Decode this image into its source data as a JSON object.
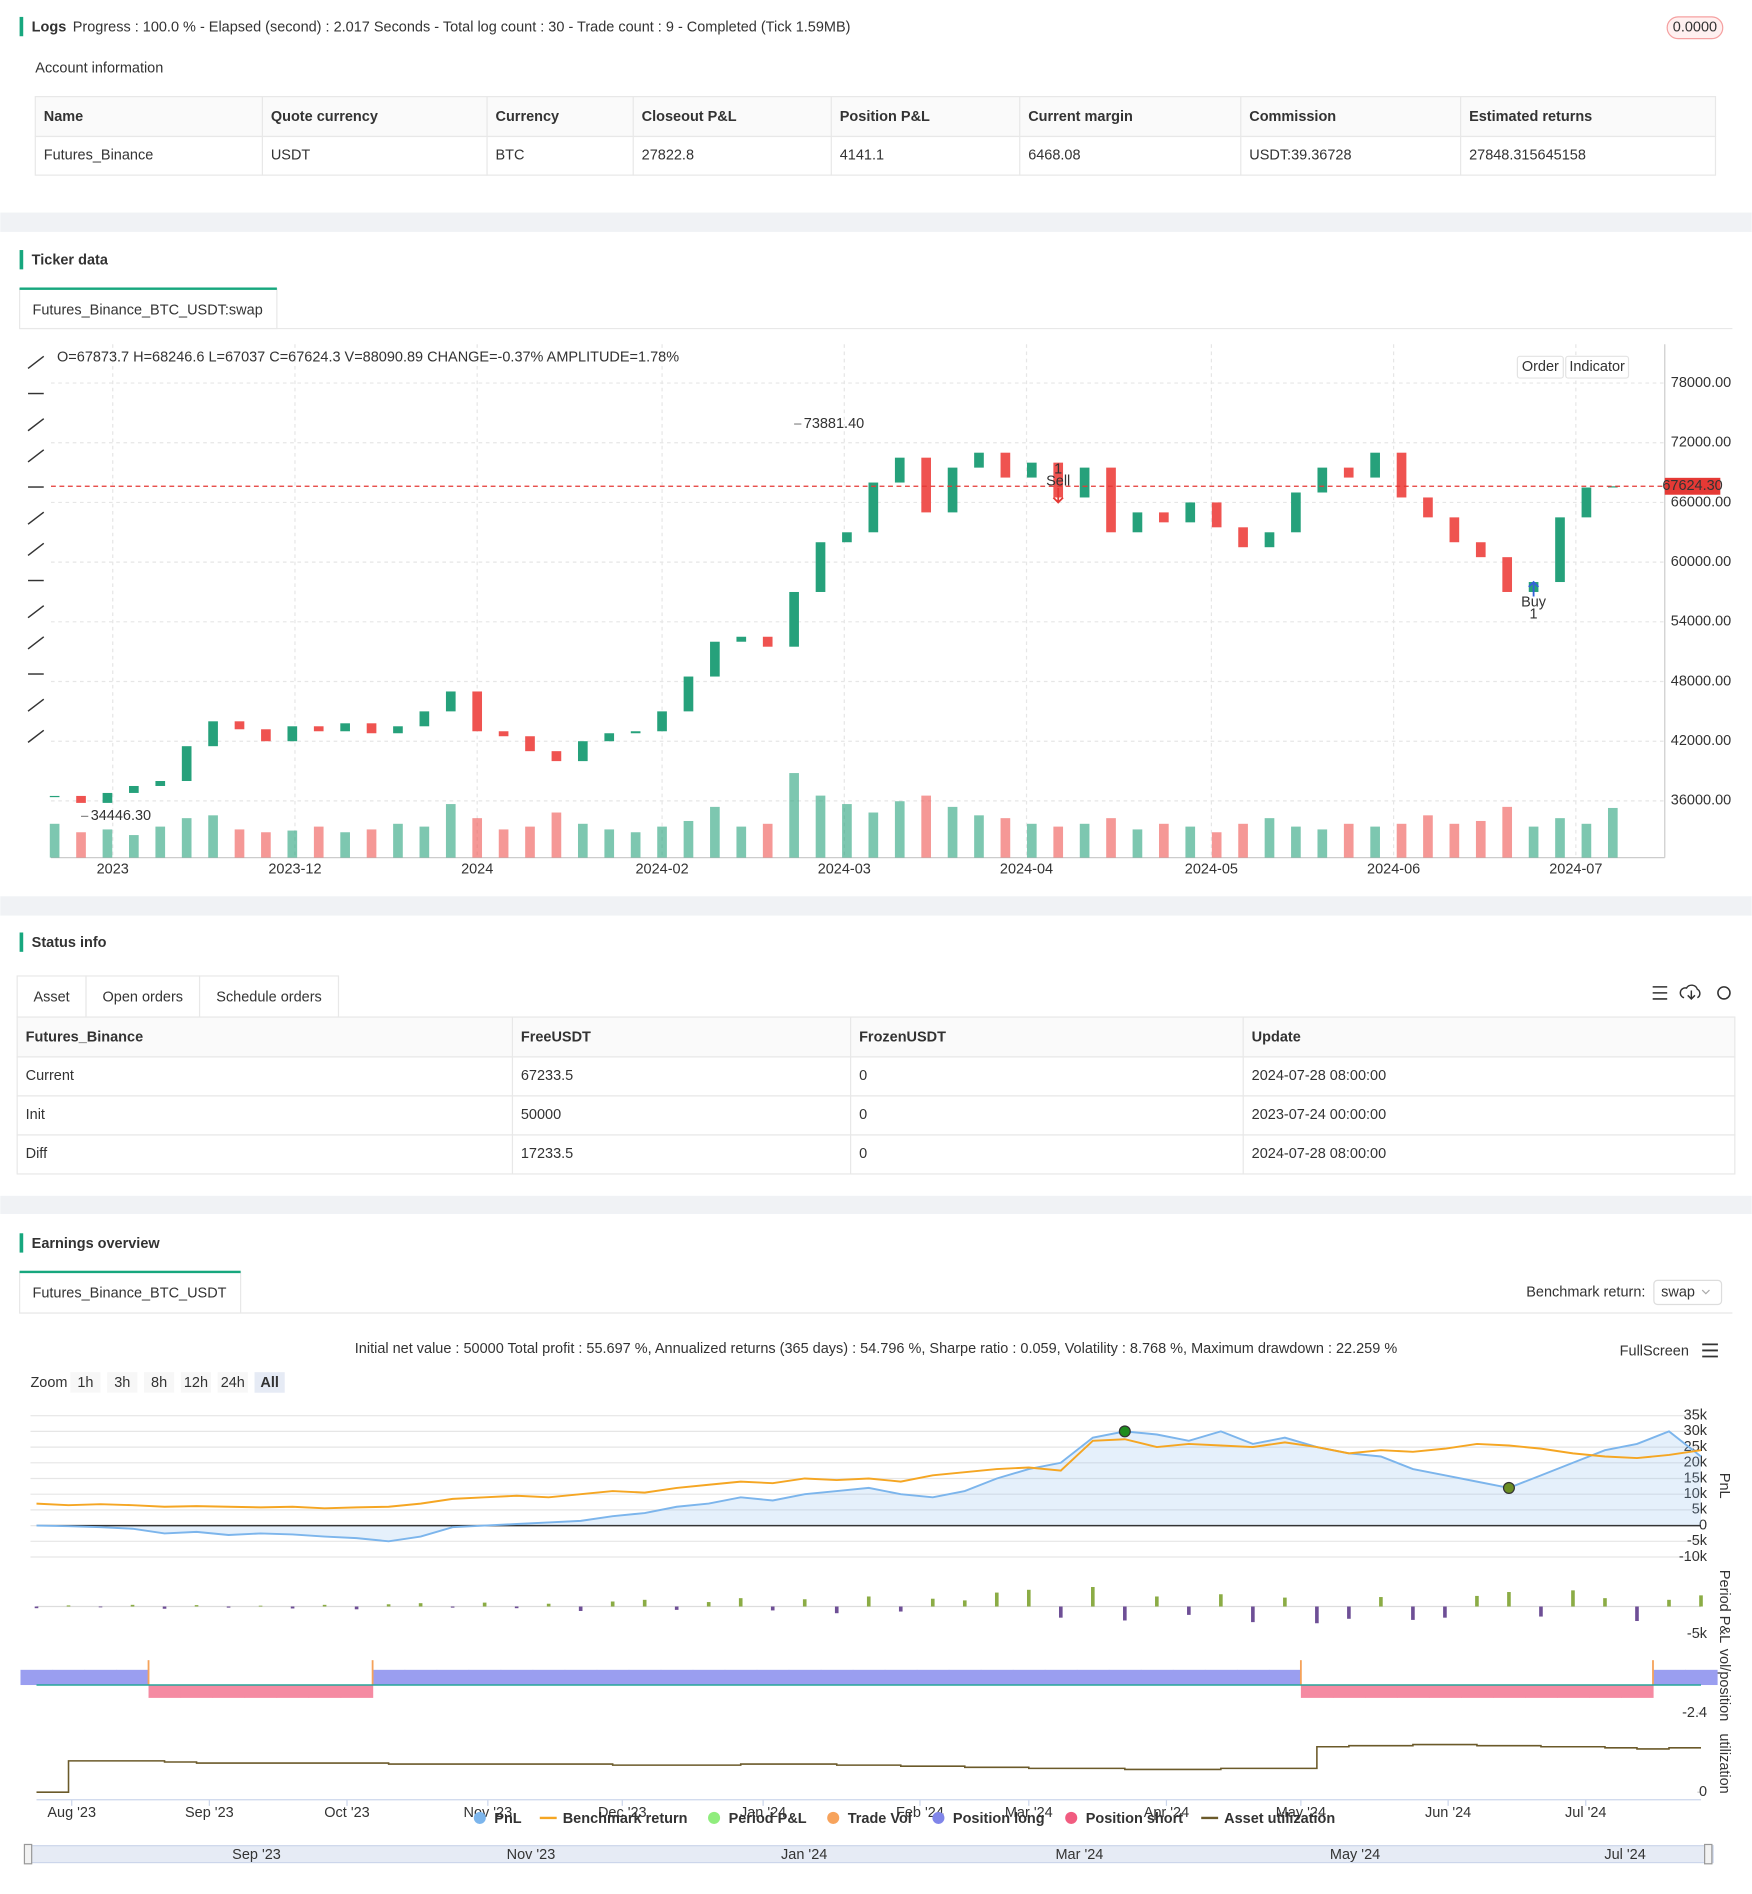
{
  "logs": {
    "title": "Logs",
    "progress": "Progress : 100.0 % - Elapsed (second) : 2.017  Seconds - Total log count : 30 - Trade count : 9 - Completed (Tick 1.59MB)",
    "badge": "0.0000"
  },
  "account": {
    "title": "Account information",
    "header": [
      "Name",
      "Quote currency",
      "Currency",
      "Closeout P&L",
      "Position P&L",
      "Current margin",
      "Commission",
      "Estimated returns"
    ],
    "rows": [
      [
        "Futures_Binance",
        "USDT",
        "BTC",
        27822.8,
        4141.1,
        6468.08,
        "USDT:39.36728",
        27848.315645158
      ]
    ]
  },
  "ticker": {
    "title": "Ticker data",
    "tab": "Futures_Binance_BTC_USDT:swap",
    "buttons": [
      "Order",
      "Indicator"
    ]
  },
  "status": {
    "title": "Status info",
    "tabs": [
      "Asset",
      "Open orders",
      "Schedule orders"
    ],
    "header": [
      "Futures_Binance",
      "FreeUSDT",
      "FrozenUSDT",
      "Update"
    ],
    "rows": [
      [
        "Current",
        67233.5,
        0,
        "2024-07-28 08:00:00"
      ],
      [
        "Init",
        50000,
        0,
        "2023-07-24 00:00:00"
      ],
      [
        "Diff",
        17233.5,
        0,
        "2024-07-28 08:00:00"
      ]
    ]
  },
  "earnings": {
    "title": "Earnings overview",
    "tab": "Futures_Binance_BTC_USDT",
    "benchmark_label": "Benchmark return:",
    "benchmark_value": "swap",
    "summary": "Initial net value : 50000 Total profit : 55.697 %, Annualized returns (365 days) : 54.796 %, Sharpe ratio : 0.059, Volatility : 8.768 %, Maximum drawdown : 22.259 %",
    "fullscreen": "FullScreen",
    "zoom_label": "Zoom",
    "zoom_buttons": [
      "1h",
      "3h",
      "8h",
      "12h",
      "24h",
      "All"
    ],
    "legend": [
      {
        "name": "PnL",
        "color": "#7cb5ec"
      },
      {
        "name": "Benchmark return",
        "color": "#f5a623"
      },
      {
        "name": "Period P&L",
        "color": "#90ed7d"
      },
      {
        "name": "Trade Vol",
        "color": "#f7a35c"
      },
      {
        "name": "Position long",
        "color": "#8085e9"
      },
      {
        "name": "Position short",
        "color": "#f15c80"
      },
      {
        "name": "Asset utilization",
        "color": "#6b5a2a"
      }
    ],
    "navigator": [
      "Sep '23",
      "Nov '23",
      "Jan '24",
      "Mar '24",
      "May '24",
      "Jul '24"
    ]
  },
  "chart_data": [
    {
      "type": "candlestick",
      "info": "O=67873.7 H=68246.6 L=67037 C=67624.3 V=88090.89 CHANGE=-0.37% AMPLITUDE=1.78%",
      "up_color": "#26a17b",
      "down_color": "#ef5350",
      "values": [
        36500,
        35800,
        36800,
        37500,
        38000,
        41500,
        44000,
        43200,
        42000,
        43500,
        43000,
        43800,
        42800,
        43500,
        45000,
        47000,
        43000,
        42500,
        41000,
        40000,
        42000,
        42800,
        43000,
        45000,
        48500,
        52000,
        52500,
        51500,
        57000,
        62000,
        63000,
        68000,
        70500,
        65000,
        69500,
        71000,
        68500,
        70000,
        66500,
        69500,
        63000,
        65000,
        64000,
        66000,
        63500,
        61500,
        63000,
        67000,
        69500,
        68500,
        71000,
        66500,
        64500,
        62000,
        60500,
        57000,
        58000,
        64500,
        67500,
        67624.3
      ],
      "volumes": [
        60000,
        45000,
        50000,
        40000,
        55000,
        70000,
        75000,
        50000,
        45000,
        48000,
        55000,
        45000,
        50000,
        60000,
        55000,
        95000,
        70000,
        50000,
        55000,
        80000,
        60000,
        50000,
        45000,
        55000,
        65000,
        90000,
        55000,
        60000,
        150000,
        110000,
        95000,
        80000,
        100000,
        110000,
        90000,
        75000,
        70000,
        60000,
        55000,
        60000,
        70000,
        50000,
        60000,
        55000,
        45000,
        60000,
        70000,
        55000,
        50000,
        60000,
        55000,
        60000,
        75000,
        60000,
        65000,
        90000,
        55000,
        70000,
        60000,
        88090.89
      ],
      "ylim": [
        30300,
        81900
      ],
      "yticks": [
        {
          "value": 78000,
          "label": "78000.00"
        },
        {
          "value": 72000,
          "label": "72000.00"
        },
        {
          "value": 66000,
          "label": "66000.00"
        },
        {
          "value": 60000,
          "label": "60000.00"
        },
        {
          "value": 54000,
          "label": "54000.00"
        },
        {
          "value": 48000,
          "label": "48000.00"
        },
        {
          "value": 42000,
          "label": "42000.00"
        },
        {
          "value": 36000,
          "label": "36000.00"
        }
      ],
      "xlim": [
        0,
        59
      ],
      "xticks": [
        {
          "value": 2.2,
          "label": "2023"
        },
        {
          "value": 9.1,
          "label": "2023-12"
        },
        {
          "value": 16,
          "label": "2024"
        },
        {
          "value": 23,
          "label": "2024-02"
        },
        {
          "value": 29.9,
          "label": "2024-03"
        },
        {
          "value": 36.8,
          "label": "2024-04"
        },
        {
          "value": 43.8,
          "label": "2024-05"
        },
        {
          "value": 50.7,
          "label": "2024-06"
        },
        {
          "value": 57.6,
          "label": "2024-07"
        }
      ],
      "last_price": {
        "value": 67624.3,
        "label": "67624.30"
      },
      "high": {
        "x": 28,
        "value": 73881.4,
        "label": "73881.40"
      },
      "low": {
        "x": 1,
        "value": 34446.3,
        "label": "34446.30"
      },
      "markers": [
        {
          "x": 38,
          "value": 66000,
          "label": "Sell",
          "count": 1,
          "color": "#e53935"
        },
        {
          "x": 56,
          "value": 58000,
          "label": "Buy",
          "count": 1,
          "color": "#3461d8"
        }
      ]
    },
    {
      "type": "line",
      "axis_title": "PnL",
      "series": [
        {
          "color": "#7cb5ec",
          "values": [
            0,
            -200,
            -500,
            -1000,
            -2500,
            -2000,
            -3000,
            -2500,
            -2800,
            -3500,
            -4000,
            -5000,
            -3500,
            -500,
            0,
            500,
            1000,
            1500,
            3000,
            4000,
            6000,
            7000,
            9000,
            8000,
            10000,
            11000,
            12000,
            10000,
            9000,
            11000,
            15000,
            18000,
            20000,
            28000,
            30000,
            29000,
            27000,
            30000,
            26000,
            28000,
            25000,
            23000,
            22000,
            18000,
            16000,
            14000,
            12000,
            16000,
            20000,
            24000,
            26000,
            30000,
            22000
          ]
        },
        {
          "color": "#f5a623",
          "values": [
            7000,
            6500,
            6800,
            6500,
            6000,
            6200,
            6000,
            5800,
            6000,
            5500,
            5800,
            6000,
            7000,
            8500,
            9000,
            9500,
            9000,
            10000,
            11000,
            10500,
            12000,
            13000,
            14000,
            13500,
            15000,
            14500,
            15000,
            14000,
            16000,
            17000,
            18000,
            18500,
            17500,
            27000,
            27500,
            25000,
            26000,
            25500,
            25000,
            26500,
            25000,
            23000,
            24000,
            23500,
            24500,
            26000,
            25500,
            24500,
            23000,
            22000,
            21500,
            22500,
            24000
          ]
        }
      ],
      "max_color": "#1e8c1e",
      "min_color": "#6b8e23",
      "xlim": [
        0,
        52
      ],
      "xticks": [
        {
          "value": 1.1,
          "label": "Aug '23"
        },
        {
          "value": 5.4,
          "label": "Sep '23"
        },
        {
          "value": 9.7,
          "label": "Oct '23"
        },
        {
          "value": 14.1,
          "label": "Nov '23"
        },
        {
          "value": 18.3,
          "label": "Dec '23"
        },
        {
          "value": 22.7,
          "label": "Jan '24"
        },
        {
          "value": 27.6,
          "label": "Feb '24"
        },
        {
          "value": 31,
          "label": "Mar '24"
        },
        {
          "value": 35.3,
          "label": "Apr '24"
        },
        {
          "value": 39.5,
          "label": "May '24"
        },
        {
          "value": 44.1,
          "label": "Jun '24"
        },
        {
          "value": 48.4,
          "label": "Jul '24"
        }
      ],
      "ylim": [
        -12300,
        37700
      ],
      "yticks": [
        {
          "value": 35000,
          "label": "35k"
        },
        {
          "value": 30000,
          "label": "30k"
        },
        {
          "value": 25000,
          "label": "25k"
        },
        {
          "value": 20000,
          "label": "20k"
        },
        {
          "value": 15000,
          "label": "15k"
        },
        {
          "value": 10000,
          "label": "10k"
        },
        {
          "value": 5000,
          "label": "5k"
        },
        0,
        {
          "value": -5000,
          "label": "-5k"
        },
        {
          "value": -10000,
          "label": "-10k"
        }
      ]
    },
    {
      "type": "bar",
      "axis_title": "Period P&L",
      "up_color": "#8bac45",
      "down_color": "#6e4f96",
      "values": [
        -300,
        200,
        -150,
        300,
        -400,
        250,
        -200,
        150,
        -350,
        300,
        -500,
        400,
        600,
        -200,
        700,
        -300,
        500,
        -800,
        900,
        1200,
        -600,
        800,
        1500,
        -700,
        1300,
        -1200,
        1800,
        -900,
        1400,
        1100,
        2500,
        3000,
        -2000,
        3500,
        -2500,
        1800,
        -1500,
        2200,
        -2800,
        1600,
        -3000,
        -2200,
        1700,
        -2400,
        -2000,
        1900,
        2600,
        -1800,
        2900,
        1500,
        -2600,
        1200,
        2000
      ],
      "ylim": [
        -6500,
        6500
      ],
      "yticks": [
        {
          "value": -5000,
          "label": "-5k"
        }
      ]
    },
    {
      "type": "bar",
      "axis_title": "vol/position",
      "series": [
        {
          "color": "#9a9ef0",
          "values": [
            1.3,
            1.3,
            1.3,
            1.3,
            null,
            null,
            null,
            null,
            null,
            null,
            null,
            1.3,
            1.3,
            1.3,
            1.3,
            1.3,
            1.3,
            1.3,
            1.3,
            1.3,
            1.3,
            1.3,
            1.3,
            1.3,
            1.3,
            1.3,
            1.3,
            1.3,
            1.3,
            1.3,
            1.3,
            1.3,
            1.3,
            1.3,
            1.3,
            1.3,
            1.3,
            1.3,
            1.3,
            1.3,
            null,
            null,
            null,
            null,
            null,
            null,
            null,
            null,
            null,
            null,
            null,
            1.3,
            1.3
          ]
        },
        {
          "color": "#f58aa2",
          "values": [
            null,
            null,
            null,
            null,
            -1.1,
            -1.1,
            -1.1,
            -1.1,
            -1.1,
            -1.1,
            -1.1,
            null,
            null,
            null,
            null,
            null,
            null,
            null,
            null,
            null,
            null,
            null,
            null,
            null,
            null,
            null,
            null,
            null,
            null,
            null,
            null,
            null,
            null,
            null,
            null,
            null,
            null,
            null,
            null,
            null,
            -1.1,
            -1.1,
            -1.1,
            -1.1,
            -1.1,
            -1.1,
            -1.1,
            -1.1,
            -1.1,
            -1.1,
            -1.1,
            null,
            null
          ]
        }
      ],
      "ylim": [
        -3.1,
        3.1
      ],
      "yticks": [
        -2.4
      ]
    },
    {
      "type": "line",
      "axis_title": "utilization",
      "color": "#6b5a2a",
      "values": [
        0,
        0.29,
        0.29,
        0.29,
        0.28,
        0.27,
        0.27,
        0.27,
        0.27,
        0.27,
        0.27,
        0.26,
        0.26,
        0.26,
        0.26,
        0.26,
        0.26,
        0.26,
        0.25,
        0.25,
        0.25,
        0.25,
        0.26,
        0.26,
        0.26,
        0.25,
        0.25,
        0.24,
        0.24,
        0.23,
        0.23,
        0.22,
        0.22,
        0.22,
        0.21,
        0.21,
        0.21,
        0.22,
        0.22,
        0.22,
        0.42,
        0.43,
        0.43,
        0.44,
        0.44,
        0.43,
        0.43,
        0.42,
        0.42,
        0.41,
        0.4,
        0.41,
        0.41
      ],
      "ylim": [
        -0.07,
        0.6
      ],
      "yticks": [
        0
      ]
    }
  ]
}
